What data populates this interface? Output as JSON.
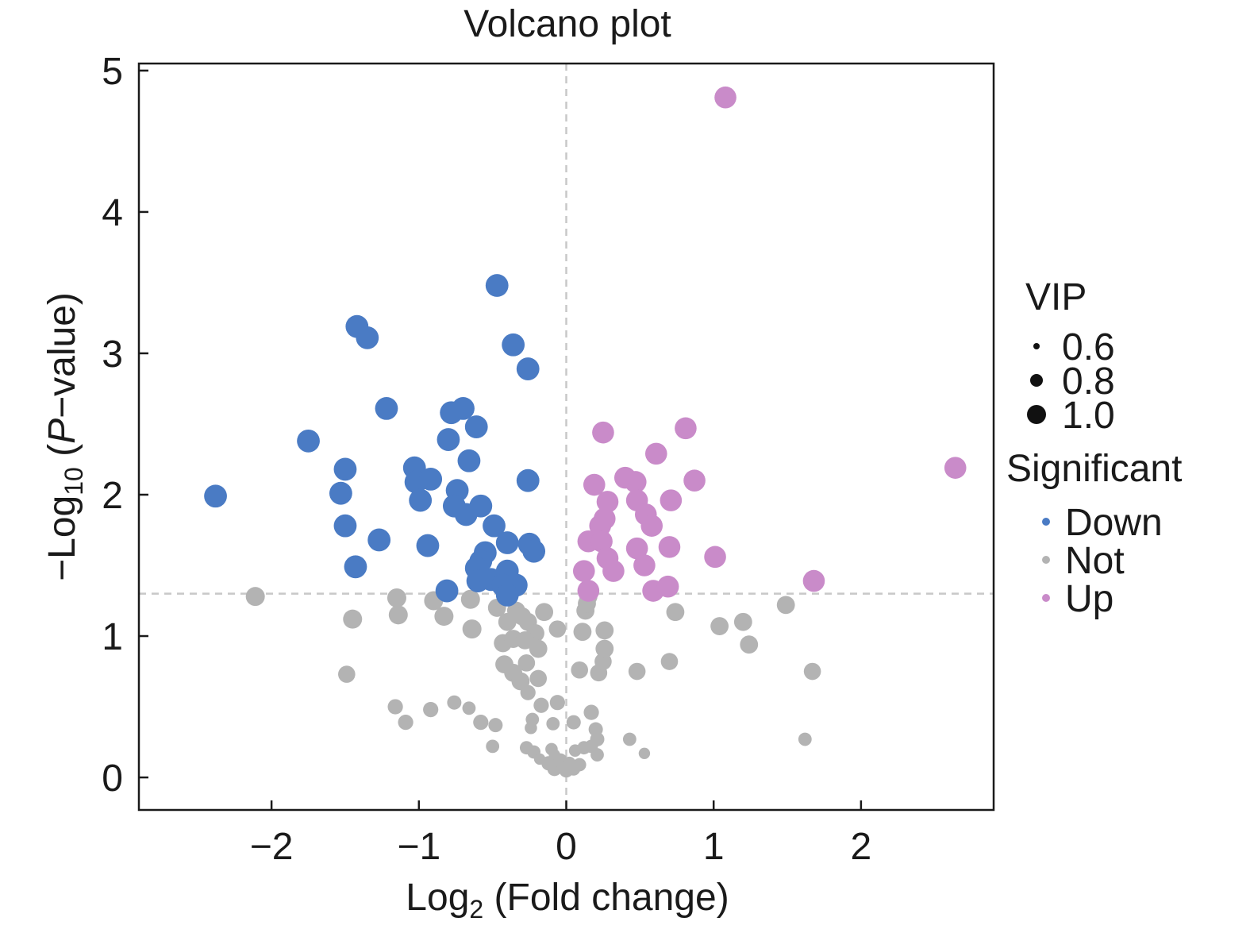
{
  "chart_data": {
    "type": "scatter",
    "title": "Volcano plot",
    "xlabel": {
      "main": "Log",
      "sub": "2",
      "rest": " (Fold change)"
    },
    "ylabel": {
      "prefix": "−Log",
      "sub": "10",
      "open": " (",
      "italic": "P",
      "rest": "−value)"
    },
    "xlim": [
      -2.9,
      2.9
    ],
    "ylim": [
      -0.23,
      5.05
    ],
    "xticks": [
      -2,
      -1,
      0,
      1,
      2
    ],
    "xtick_labels": [
      "−2",
      "−1",
      "0",
      "1",
      "2"
    ],
    "yticks": [
      0,
      1,
      2,
      3,
      4,
      5
    ],
    "ytick_labels": [
      "0",
      "1",
      "2",
      "3",
      "4",
      "5"
    ],
    "threshold": {
      "x": 0,
      "y": 1.3
    },
    "colors": {
      "Down": "#4a7bc4",
      "Not": "#b3b3b3",
      "Up": "#c98bc9",
      "axis": "#1a1a1a",
      "threshold": "#c8c8c8"
    },
    "legend": {
      "position": "right",
      "size_title": "VIP",
      "sizes": [
        {
          "label": "0.6",
          "vip": 0.6
        },
        {
          "label": "0.8",
          "vip": 0.8
        },
        {
          "label": "1.0",
          "vip": 1.0
        }
      ],
      "color_title": "Significant",
      "groups": [
        {
          "label": "Down",
          "key": "Down"
        },
        {
          "label": "Not",
          "key": "Not"
        },
        {
          "label": "Up",
          "key": "Up"
        }
      ]
    },
    "series": [
      {
        "name": "Down",
        "points": [
          [
            -2.38,
            1.99,
            1.2
          ],
          [
            -1.75,
            2.38,
            1.2
          ],
          [
            -1.5,
            2.18,
            1.2
          ],
          [
            -1.53,
            2.01,
            1.2
          ],
          [
            -1.5,
            1.78,
            1.2
          ],
          [
            -1.27,
            1.68,
            1.2
          ],
          [
            -1.42,
            3.19,
            1.2
          ],
          [
            -1.35,
            3.11,
            1.2
          ],
          [
            -1.22,
            2.61,
            1.2
          ],
          [
            -1.43,
            1.49,
            1.2
          ],
          [
            -1.03,
            2.19,
            1.2
          ],
          [
            -1.02,
            2.09,
            1.2
          ],
          [
            -0.92,
            2.11,
            1.2
          ],
          [
            -0.99,
            1.96,
            1.2
          ],
          [
            -0.94,
            1.64,
            1.2
          ],
          [
            -0.8,
            2.39,
            1.2
          ],
          [
            -0.78,
            2.58,
            1.2
          ],
          [
            -0.7,
            2.61,
            1.2
          ],
          [
            -0.61,
            2.48,
            1.2
          ],
          [
            -0.66,
            2.24,
            1.2
          ],
          [
            -0.74,
            2.03,
            1.2
          ],
          [
            -0.76,
            1.92,
            1.2
          ],
          [
            -0.68,
            1.86,
            1.2
          ],
          [
            -0.58,
            1.92,
            1.2
          ],
          [
            -0.49,
            1.78,
            1.2
          ],
          [
            -0.47,
            3.48,
            1.2
          ],
          [
            -0.36,
            3.06,
            1.2
          ],
          [
            -0.26,
            2.89,
            1.2
          ],
          [
            -0.26,
            2.1,
            1.2
          ],
          [
            -0.4,
            1.66,
            1.2
          ],
          [
            -0.25,
            1.65,
            1.2
          ],
          [
            -0.22,
            1.6,
            1.2
          ],
          [
            -0.55,
            1.59,
            1.2
          ],
          [
            -0.58,
            1.53,
            1.2
          ],
          [
            -0.61,
            1.48,
            1.2
          ],
          [
            -0.6,
            1.39,
            1.2
          ],
          [
            -0.51,
            1.4,
            1.2
          ],
          [
            -0.4,
            1.46,
            1.2
          ],
          [
            -0.43,
            1.36,
            1.2
          ],
          [
            -0.34,
            1.36,
            1.2
          ],
          [
            -0.4,
            1.29,
            1.2
          ],
          [
            -0.81,
            1.32,
            1.2
          ]
        ]
      },
      {
        "name": "Not",
        "points": [
          [
            -2.11,
            1.28,
            1.0
          ],
          [
            -1.45,
            1.12,
            1.0
          ],
          [
            -1.15,
            1.27,
            1.0
          ],
          [
            -1.14,
            1.15,
            1.0
          ],
          [
            -0.9,
            1.25,
            1.0
          ],
          [
            -0.83,
            1.14,
            1.0
          ],
          [
            -0.65,
            1.26,
            1.0
          ],
          [
            -0.64,
            1.05,
            1.0
          ],
          [
            -1.49,
            0.73,
            0.9
          ],
          [
            -1.16,
            0.5,
            0.8
          ],
          [
            -1.09,
            0.39,
            0.8
          ],
          [
            -0.92,
            0.48,
            0.8
          ],
          [
            -0.76,
            0.53,
            0.75
          ],
          [
            -0.66,
            0.49,
            0.7
          ],
          [
            -0.58,
            0.39,
            0.8
          ],
          [
            -0.48,
            0.37,
            0.75
          ],
          [
            -0.5,
            0.22,
            0.7
          ],
          [
            -0.47,
            1.2,
            0.95
          ],
          [
            -0.4,
            1.1,
            0.95
          ],
          [
            -0.34,
            1.18,
            0.95
          ],
          [
            -0.3,
            1.14,
            0.95
          ],
          [
            -0.26,
            1.1,
            0.95
          ],
          [
            -0.21,
            1.02,
            0.95
          ],
          [
            -0.15,
            1.17,
            0.95
          ],
          [
            -0.06,
            1.05,
            0.9
          ],
          [
            -0.43,
            0.95,
            0.95
          ],
          [
            -0.36,
            0.98,
            0.95
          ],
          [
            -0.28,
            0.97,
            0.95
          ],
          [
            -0.19,
            0.91,
            0.95
          ],
          [
            -0.42,
            0.8,
            0.95
          ],
          [
            -0.36,
            0.74,
            0.95
          ],
          [
            -0.27,
            0.81,
            0.9
          ],
          [
            -0.31,
            0.68,
            0.95
          ],
          [
            -0.19,
            0.7,
            0.9
          ],
          [
            -0.26,
            0.6,
            0.8
          ],
          [
            -0.17,
            0.51,
            0.8
          ],
          [
            -0.06,
            0.53,
            0.8
          ],
          [
            -0.23,
            0.41,
            0.7
          ],
          [
            -0.09,
            0.38,
            0.7
          ],
          [
            -0.24,
            0.35,
            0.65
          ],
          [
            -0.27,
            0.21,
            0.7
          ],
          [
            -0.22,
            0.18,
            0.7
          ],
          [
            -0.1,
            0.2,
            0.65
          ],
          [
            -0.08,
            0.16,
            0.6
          ],
          [
            -0.18,
            0.13,
            0.6
          ],
          [
            -0.12,
            0.1,
            0.75
          ],
          [
            -0.08,
            0.06,
            0.75
          ],
          [
            -0.04,
            0.12,
            0.75
          ],
          [
            0.0,
            0.05,
            0.75
          ],
          [
            0.02,
            0.1,
            0.7
          ],
          [
            0.05,
            0.06,
            0.7
          ],
          [
            0.09,
            0.09,
            0.7
          ],
          [
            0.06,
            0.19,
            0.65
          ],
          [
            0.12,
            0.21,
            0.7
          ],
          [
            0.21,
            0.16,
            0.7
          ],
          [
            0.17,
            0.22,
            0.7
          ],
          [
            0.21,
            0.27,
            0.75
          ],
          [
            0.2,
            0.34,
            0.75
          ],
          [
            0.17,
            0.46,
            0.8
          ],
          [
            0.05,
            0.39,
            0.75
          ],
          [
            0.09,
            0.76,
            0.9
          ],
          [
            0.22,
            0.74,
            0.9
          ],
          [
            0.25,
            0.82,
            0.9
          ],
          [
            0.26,
            0.91,
            0.95
          ],
          [
            0.26,
            1.04,
            0.95
          ],
          [
            0.11,
            1.03,
            0.95
          ],
          [
            0.13,
            1.18,
            0.95
          ],
          [
            0.14,
            1.23,
            0.95
          ],
          [
            0.15,
            1.28,
            0.95
          ],
          [
            0.48,
            0.75,
            0.9
          ],
          [
            0.7,
            0.82,
            0.9
          ],
          [
            0.74,
            1.17,
            0.95
          ],
          [
            1.04,
            1.07,
            0.95
          ],
          [
            1.2,
            1.1,
            0.95
          ],
          [
            1.24,
            0.94,
            0.95
          ],
          [
            1.49,
            1.22,
            0.95
          ],
          [
            1.67,
            0.75,
            0.9
          ],
          [
            1.62,
            0.27,
            0.7
          ],
          [
            0.43,
            0.27,
            0.7
          ],
          [
            0.53,
            0.17,
            0.6
          ]
        ]
      },
      {
        "name": "Up",
        "points": [
          [
            1.08,
            4.81,
            1.15
          ],
          [
            2.64,
            2.19,
            1.15
          ],
          [
            1.68,
            1.39,
            1.15
          ],
          [
            0.25,
            2.44,
            1.15
          ],
          [
            0.81,
            2.47,
            1.15
          ],
          [
            0.61,
            2.29,
            1.15
          ],
          [
            0.19,
            2.07,
            1.15
          ],
          [
            0.4,
            2.12,
            1.15
          ],
          [
            0.47,
            2.09,
            1.15
          ],
          [
            0.87,
            2.1,
            1.15
          ],
          [
            0.28,
            1.95,
            1.15
          ],
          [
            0.48,
            1.96,
            1.15
          ],
          [
            0.71,
            1.96,
            1.15
          ],
          [
            0.54,
            1.86,
            1.15
          ],
          [
            0.26,
            1.83,
            1.15
          ],
          [
            0.23,
            1.78,
            1.15
          ],
          [
            0.58,
            1.78,
            1.15
          ],
          [
            0.15,
            1.67,
            1.15
          ],
          [
            0.24,
            1.67,
            1.15
          ],
          [
            0.48,
            1.62,
            1.15
          ],
          [
            0.7,
            1.63,
            1.15
          ],
          [
            0.28,
            1.55,
            1.15
          ],
          [
            0.53,
            1.5,
            1.15
          ],
          [
            1.01,
            1.56,
            1.15
          ],
          [
            0.12,
            1.46,
            1.15
          ],
          [
            0.32,
            1.46,
            1.15
          ],
          [
            0.15,
            1.32,
            1.15
          ],
          [
            0.59,
            1.32,
            1.15
          ],
          [
            0.69,
            1.35,
            1.15
          ]
        ]
      }
    ]
  }
}
